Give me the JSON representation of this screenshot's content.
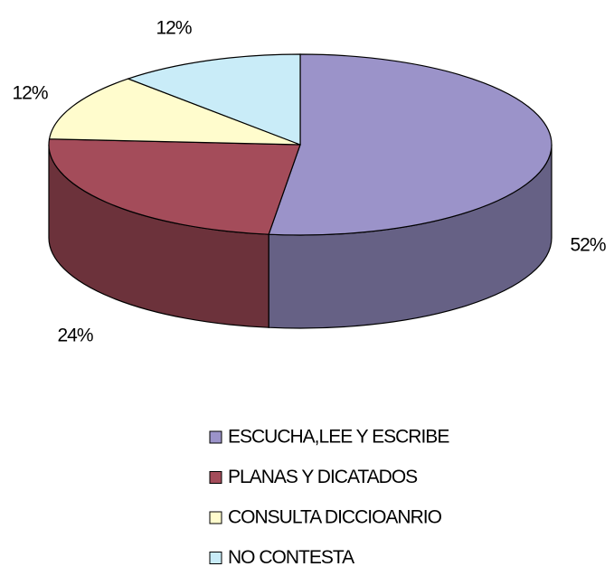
{
  "chart_data": {
    "type": "pie3d",
    "categories": [
      "ESCUCHA,LEE Y ESCRIBE",
      "PLANAS Y DICATADOS",
      "CONSULTA DICCIOANRIO",
      "NO CONTESTA"
    ],
    "values": [
      52,
      24,
      12,
      12
    ],
    "value_labels": [
      "52%",
      "24%",
      "12%",
      "12%"
    ],
    "colors": [
      "#9b93c9",
      "#a44c5a",
      "#fffccd",
      "#c9ecf8"
    ],
    "legend": "bottom"
  }
}
